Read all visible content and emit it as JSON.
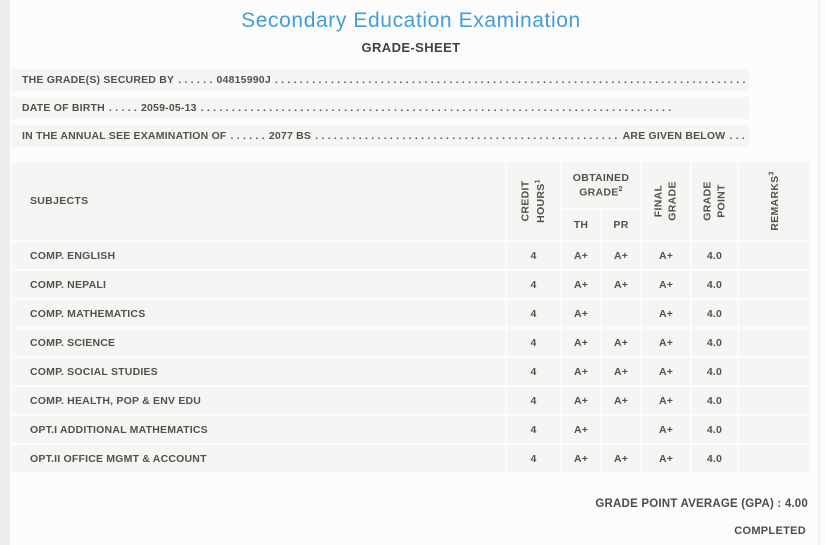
{
  "page": {
    "title": "Secondary Education Examination",
    "subtitle": "GRADE-SHEET",
    "accent_color": "#419eda",
    "band_color": "#f5f5f4",
    "text_color": "#55514a"
  },
  "info_lines": {
    "grades_secured": {
      "label": "THE GRADE(S) SECURED BY",
      "dots_before": ". . . . . .",
      "value": "04815990J",
      "dots_after": ". . . . . . . . . . . . . . . . . . . . . . . . . . . . . . . . . . . . . . . . . . . . . . . . . . . . . . . . . . . . . . . . . . . . . . . . . . . ."
    },
    "date_of_birth": {
      "label": "DATE OF BIRTH",
      "dots_before": ". . . . .",
      "value": "2059-05-13",
      "dots_after": ". . . . . . . . . . . . . . . . . . . . . . . . . . . . . . . . . . . . . . . . . . . . . . . . . . . . . . . . . . . . . . . . . . . . . . . . . . . ."
    },
    "examination": {
      "label": "IN THE ANNUAL SEE EXAMINATION OF",
      "dots_before": ". . . . . .",
      "value": "2077 BS",
      "dots_after": ". . . . . . . . . . . . . . . . . . . . . . . . . . . . . . . . . . . . . . . . . . . . . . . . . . . . . . . . . . . . . . . . . . . . . . . . . . . .",
      "suffix": "ARE GIVEN BELOW",
      "dots_end": ". . ."
    }
  },
  "table": {
    "headers": {
      "subjects": "SUBJECTS",
      "credit_line1": "CREDIT",
      "credit_line2": "HOURS",
      "credit_sup": "1",
      "obtained_line1": "OBTAINED",
      "obtained_line2": "GRADE",
      "obtained_sup": "2",
      "th": "TH",
      "pr": "PR",
      "final_line1": "FINAL",
      "final_line2": "GRADE",
      "gp_line1": "GRADE",
      "gp_line2": "POINT",
      "remarks": "REMARKS",
      "remarks_sup": "3"
    },
    "rows": [
      {
        "subject": "COMP. ENGLISH",
        "credit": "4",
        "th": "A+",
        "pr": "A+",
        "final": "A+",
        "gp": "4.0",
        "remarks": ""
      },
      {
        "subject": "COMP. NEPALI",
        "credit": "4",
        "th": "A+",
        "pr": "A+",
        "final": "A+",
        "gp": "4.0",
        "remarks": ""
      },
      {
        "subject": "COMP. MATHEMATICS",
        "credit": "4",
        "th": "A+",
        "pr": "",
        "final": "A+",
        "gp": "4.0",
        "remarks": ""
      },
      {
        "subject": "COMP. SCIENCE",
        "credit": "4",
        "th": "A+",
        "pr": "A+",
        "final": "A+",
        "gp": "4.0",
        "remarks": ""
      },
      {
        "subject": "COMP. SOCIAL STUDIES",
        "credit": "4",
        "th": "A+",
        "pr": "A+",
        "final": "A+",
        "gp": "4.0",
        "remarks": ""
      },
      {
        "subject": "COMP. HEALTH, POP & ENV EDU",
        "credit": "4",
        "th": "A+",
        "pr": "A+",
        "final": "A+",
        "gp": "4.0",
        "remarks": ""
      },
      {
        "subject": "OPT.I ADDITIONAL MATHEMATICS",
        "credit": "4",
        "th": "A+",
        "pr": "",
        "final": "A+",
        "gp": "4.0",
        "remarks": ""
      },
      {
        "subject": "OPT.II OFFICE MGMT & ACCOUNT",
        "credit": "4",
        "th": "A+",
        "pr": "A+",
        "final": "A+",
        "gp": "4.0",
        "remarks": ""
      }
    ]
  },
  "footer": {
    "gpa_label": "GRADE POINT AVERAGE (GPA) :",
    "gpa_value": "4.00",
    "status": "COMPLETED"
  }
}
